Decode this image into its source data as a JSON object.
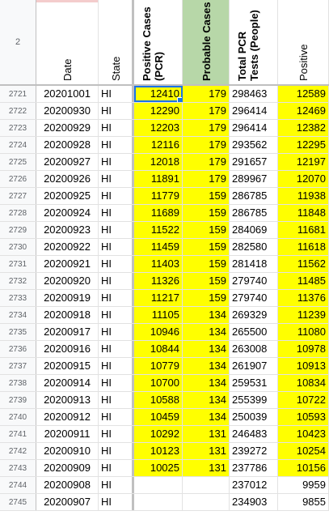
{
  "header": {
    "row_number": "2",
    "columns": [
      {
        "key": "date",
        "label": "Date",
        "bold": false,
        "bg": "#ffffff"
      },
      {
        "key": "state",
        "label": "State",
        "bold": false,
        "bg": "#ffffff"
      },
      {
        "key": "positive_pcr",
        "label": "Positive Cases\n(PCR)",
        "bold": true,
        "bg": "#ffffff"
      },
      {
        "key": "probable",
        "label": "Probable Cases",
        "bold": true,
        "bg": "#b7d7a8"
      },
      {
        "key": "total_pcr",
        "label": "Total PCR\nTests (People)",
        "bold": true,
        "bg": "#ffffff"
      },
      {
        "key": "positive",
        "label": "Positive",
        "bold": false,
        "bg": "#ffffff"
      }
    ]
  },
  "accent_colors": {
    "pink_top": "#f4cccc",
    "yellow": "#ffff00",
    "green_header": "#b7d7a8",
    "selection": "#1a73e8"
  },
  "rows": [
    {
      "n": "2721",
      "date": "20201001",
      "state": "HI",
      "positive_pcr": "12410",
      "probable": "179",
      "total_pcr": "298463",
      "positive": "12589",
      "yellow": true,
      "selected": true
    },
    {
      "n": "2722",
      "date": "20200930",
      "state": "HI",
      "positive_pcr": "12290",
      "probable": "179",
      "total_pcr": "296414",
      "positive": "12469",
      "yellow": true
    },
    {
      "n": "2723",
      "date": "20200929",
      "state": "HI",
      "positive_pcr": "12203",
      "probable": "179",
      "total_pcr": "296414",
      "positive": "12382",
      "yellow": true
    },
    {
      "n": "2724",
      "date": "20200928",
      "state": "HI",
      "positive_pcr": "12116",
      "probable": "179",
      "total_pcr": "293562",
      "positive": "12295",
      "yellow": true
    },
    {
      "n": "2725",
      "date": "20200927",
      "state": "HI",
      "positive_pcr": "12018",
      "probable": "179",
      "total_pcr": "291657",
      "positive": "12197",
      "yellow": true
    },
    {
      "n": "2726",
      "date": "20200926",
      "state": "HI",
      "positive_pcr": "11891",
      "probable": "179",
      "total_pcr": "289967",
      "positive": "12070",
      "yellow": true
    },
    {
      "n": "2727",
      "date": "20200925",
      "state": "HI",
      "positive_pcr": "11779",
      "probable": "159",
      "total_pcr": "286785",
      "positive": "11938",
      "yellow": true
    },
    {
      "n": "2728",
      "date": "20200924",
      "state": "HI",
      "positive_pcr": "11689",
      "probable": "159",
      "total_pcr": "286785",
      "positive": "11848",
      "yellow": true
    },
    {
      "n": "2729",
      "date": "20200923",
      "state": "HI",
      "positive_pcr": "11522",
      "probable": "159",
      "total_pcr": "284069",
      "positive": "11681",
      "yellow": true
    },
    {
      "n": "2730",
      "date": "20200922",
      "state": "HI",
      "positive_pcr": "11459",
      "probable": "159",
      "total_pcr": "282580",
      "positive": "11618",
      "yellow": true
    },
    {
      "n": "2731",
      "date": "20200921",
      "state": "HI",
      "positive_pcr": "11403",
      "probable": "159",
      "total_pcr": "281418",
      "positive": "11562",
      "yellow": true
    },
    {
      "n": "2732",
      "date": "20200920",
      "state": "HI",
      "positive_pcr": "11326",
      "probable": "159",
      "total_pcr": "279740",
      "positive": "11485",
      "yellow": true
    },
    {
      "n": "2733",
      "date": "20200919",
      "state": "HI",
      "positive_pcr": "11217",
      "probable": "159",
      "total_pcr": "279740",
      "positive": "11376",
      "yellow": true
    },
    {
      "n": "2734",
      "date": "20200918",
      "state": "HI",
      "positive_pcr": "11105",
      "probable": "134",
      "total_pcr": "269329",
      "positive": "11239",
      "yellow": true
    },
    {
      "n": "2735",
      "date": "20200917",
      "state": "HI",
      "positive_pcr": "10946",
      "probable": "134",
      "total_pcr": "265500",
      "positive": "11080",
      "yellow": true
    },
    {
      "n": "2736",
      "date": "20200916",
      "state": "HI",
      "positive_pcr": "10844",
      "probable": "134",
      "total_pcr": "263008",
      "positive": "10978",
      "yellow": true
    },
    {
      "n": "2737",
      "date": "20200915",
      "state": "HI",
      "positive_pcr": "10779",
      "probable": "134",
      "total_pcr": "261907",
      "positive": "10913",
      "yellow": true
    },
    {
      "n": "2738",
      "date": "20200914",
      "state": "HI",
      "positive_pcr": "10700",
      "probable": "134",
      "total_pcr": "259531",
      "positive": "10834",
      "yellow": true
    },
    {
      "n": "2739",
      "date": "20200913",
      "state": "HI",
      "positive_pcr": "10588",
      "probable": "134",
      "total_pcr": "255399",
      "positive": "10722",
      "yellow": true
    },
    {
      "n": "2740",
      "date": "20200912",
      "state": "HI",
      "positive_pcr": "10459",
      "probable": "134",
      "total_pcr": "250039",
      "positive": "10593",
      "yellow": true
    },
    {
      "n": "2741",
      "date": "20200911",
      "state": "HI",
      "positive_pcr": "10292",
      "probable": "131",
      "total_pcr": "246483",
      "positive": "10423",
      "yellow": true
    },
    {
      "n": "2742",
      "date": "20200910",
      "state": "HI",
      "positive_pcr": "10123",
      "probable": "131",
      "total_pcr": "239272",
      "positive": "10254",
      "yellow": true
    },
    {
      "n": "2743",
      "date": "20200909",
      "state": "HI",
      "positive_pcr": "10025",
      "probable": "131",
      "total_pcr": "237786",
      "positive": "10156",
      "yellow": true
    },
    {
      "n": "2744",
      "date": "20200908",
      "state": "HI",
      "positive_pcr": "",
      "probable": "",
      "total_pcr": "237012",
      "positive": "9959",
      "yellow": false
    },
    {
      "n": "2745",
      "date": "20200907",
      "state": "HI",
      "positive_pcr": "",
      "probable": "",
      "total_pcr": "234903",
      "positive": "9855",
      "yellow": false
    }
  ]
}
